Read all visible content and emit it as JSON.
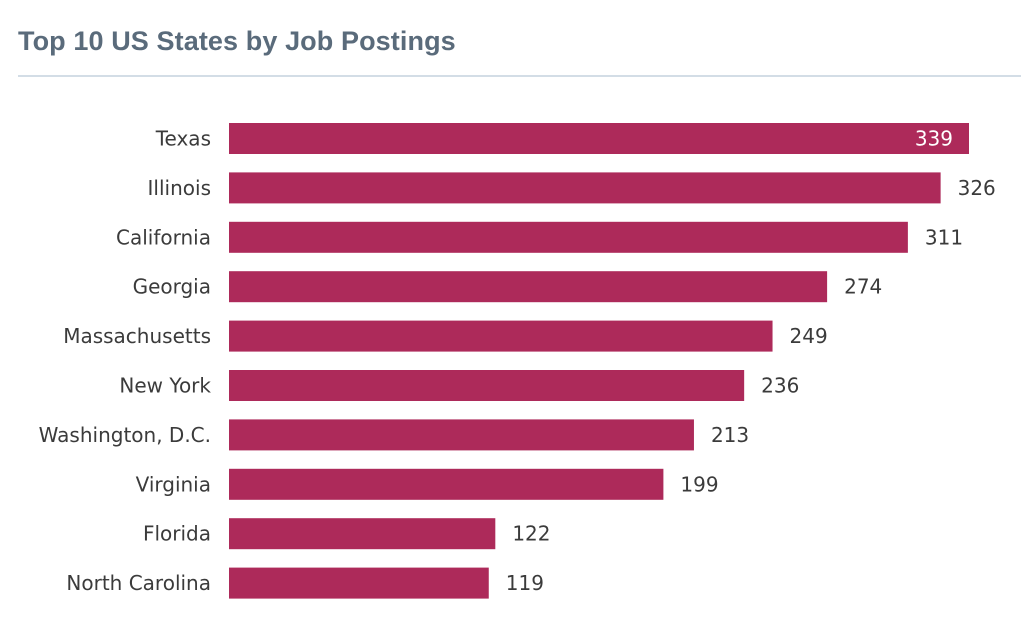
{
  "title": "Top 10 US States by Job Postings",
  "colors": {
    "bar": "#ad2a5a",
    "title": "#5a6b7b",
    "label": "#3b3b3b",
    "value_inside": "#ffffff",
    "rule": "#d3dde6"
  },
  "chart_data": {
    "type": "bar",
    "orientation": "horizontal",
    "title": "Top 10 US States by Job Postings",
    "xlabel": "",
    "ylabel": "",
    "xlim": [
      0,
      339
    ],
    "grid": false,
    "legend": "none",
    "categories": [
      "Texas",
      "Illinois",
      "California",
      "Georgia",
      "Massachusetts",
      "New York",
      "Washington, D.C.",
      "Virginia",
      "Florida",
      "North Carolina"
    ],
    "values": [
      339,
      326,
      311,
      274,
      249,
      236,
      213,
      199,
      122,
      119
    ]
  }
}
